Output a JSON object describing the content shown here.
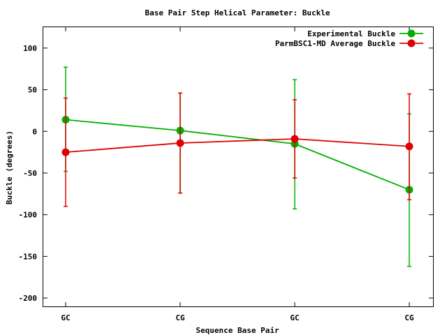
{
  "chart_data": {
    "type": "line",
    "title": "Base Pair Step Helical Parameter: Buckle",
    "xlabel": "Sequence Base Pair",
    "ylabel": "Buckle (degrees)",
    "categories": [
      "GC",
      "CG",
      "GC",
      "CG"
    ],
    "ylim": [
      -210,
      125
    ],
    "yticks": [
      100,
      50,
      0,
      -50,
      -100,
      -150,
      -200
    ],
    "ytick_labels": [
      "100",
      "50",
      "0",
      "-50",
      "-100",
      "-150",
      "-200"
    ],
    "grid": false,
    "legend_position": "top-right",
    "series": [
      {
        "name": "Experimental Buckle",
        "color": "#00b000",
        "values": [
          14,
          1,
          -15,
          -70
        ],
        "err_low": [
          -48,
          -74,
          -93,
          -162
        ],
        "err_high": [
          77,
          46,
          62,
          21
        ]
      },
      {
        "name": "ParmBSC1-MD Average Buckle",
        "color": "#e00000",
        "values": [
          -25,
          -14,
          -9,
          -18
        ],
        "err_low": [
          -90,
          -74,
          -56,
          -82
        ],
        "err_high": [
          40,
          46,
          38,
          45
        ]
      }
    ]
  }
}
